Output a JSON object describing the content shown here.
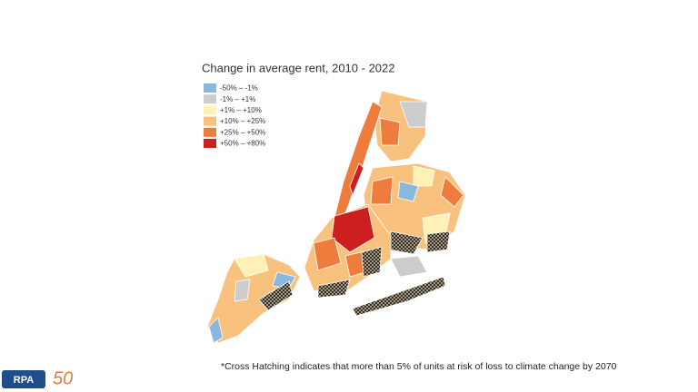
{
  "map": {
    "title": "Change in average rent, 2010 - 2022",
    "legend": [
      {
        "label": "-50% – -1%",
        "color": "#8ab8dc"
      },
      {
        "label": "-1% – +1%",
        "color": "#cccccc"
      },
      {
        "label": "+1% – +10%",
        "color": "#fdf1b5"
      },
      {
        "label": "+10% – +25%",
        "color": "#f8c27e"
      },
      {
        "label": "+25% – +50%",
        "color": "#ee7c3c"
      },
      {
        "label": "+50% – +80%",
        "color": "#cc2020"
      }
    ],
    "footnote": "*Cross Hatching indicates that more than 5% of units at risk of loss to climate change by 2070"
  },
  "logo": {
    "name": "RPA",
    "anniversary": "50"
  }
}
